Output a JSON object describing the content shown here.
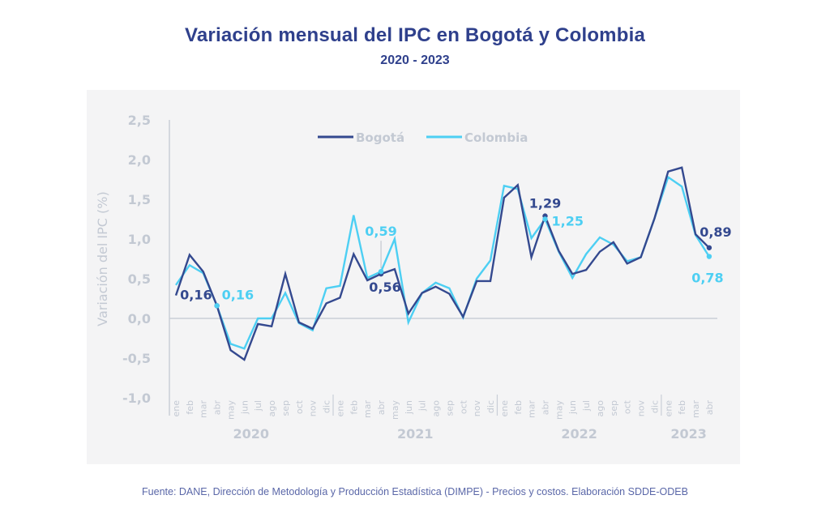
{
  "chart_data": {
    "type": "line",
    "title": "Variación mensual del IPC en Bogotá y Colombia",
    "subtitle": "2020 - 2023",
    "xlabel": "",
    "ylabel": "Variación del IPC (%)",
    "ylim": [
      -1.0,
      2.5
    ],
    "yticks": [
      "-1,0",
      "-0,5",
      "0,0",
      "0,5",
      "1,0",
      "1,5",
      "2,0",
      "2,5"
    ],
    "ytick_values": [
      -1.0,
      -0.5,
      0.0,
      0.5,
      1.0,
      1.5,
      2.0,
      2.5
    ],
    "grid": false,
    "legend_position": "top-center",
    "years": [
      {
        "label": "2020",
        "months": 12
      },
      {
        "label": "2021",
        "months": 12
      },
      {
        "label": "2022",
        "months": 12
      },
      {
        "label": "2023",
        "months": 4
      }
    ],
    "x": [
      "ene",
      "feb",
      "mar",
      "abr",
      "may",
      "jun",
      "jul",
      "ago",
      "sep",
      "oct",
      "nov",
      "dic",
      "ene",
      "feb",
      "mar",
      "abr",
      "may",
      "jun",
      "jul",
      "ago",
      "sep",
      "oct",
      "nov",
      "dic",
      "ene",
      "feb",
      "mar",
      "abr",
      "may",
      "jun",
      "jul",
      "ago",
      "sep",
      "oct",
      "nov",
      "dic",
      "ene",
      "feb",
      "mar",
      "abr"
    ],
    "series": [
      {
        "name": "Bogotá",
        "color": "#34498f",
        "values": [
          0.29,
          0.8,
          0.59,
          0.16,
          -0.4,
          -0.52,
          -0.07,
          -0.1,
          0.56,
          -0.05,
          -0.13,
          0.19,
          0.26,
          0.81,
          0.48,
          0.56,
          0.62,
          0.06,
          0.32,
          0.4,
          0.31,
          0.02,
          0.47,
          0.47,
          1.52,
          1.68,
          0.77,
          1.29,
          0.85,
          0.56,
          0.61,
          0.84,
          0.96,
          0.69,
          0.77,
          1.26,
          1.85,
          1.9,
          1.06,
          0.89
        ]
      },
      {
        "name": "Colombia",
        "color": "#4dcff3",
        "values": [
          0.42,
          0.67,
          0.57,
          0.16,
          -0.32,
          -0.38,
          0.0,
          0.0,
          0.32,
          -0.06,
          -0.15,
          0.38,
          0.41,
          1.3,
          0.51,
          0.59,
          1.0,
          -0.05,
          0.32,
          0.45,
          0.38,
          0.01,
          0.5,
          0.73,
          1.67,
          1.63,
          1.01,
          1.25,
          0.84,
          0.51,
          0.81,
          1.02,
          0.93,
          0.72,
          0.77,
          1.26,
          1.78,
          1.66,
          1.05,
          0.78
        ]
      }
    ],
    "annotations": [
      {
        "series": "Bogotá",
        "index": 3,
        "text": "0,16"
      },
      {
        "series": "Colombia",
        "index": 3,
        "text": "0,16"
      },
      {
        "series": "Bogotá",
        "index": 15,
        "text": "0,56"
      },
      {
        "series": "Colombia",
        "index": 15,
        "text": "0,59"
      },
      {
        "series": "Bogotá",
        "index": 27,
        "text": "1,29"
      },
      {
        "series": "Colombia",
        "index": 27,
        "text": "1,25"
      },
      {
        "series": "Bogotá",
        "index": 39,
        "text": "0,89"
      },
      {
        "series": "Colombia",
        "index": 39,
        "text": "0,78"
      }
    ]
  },
  "source": "Fuente: DANE, Dirección de Metodología y Producción Estadística (DIMPE) - Precios y costos. Elaboración SDDE-ODEB"
}
